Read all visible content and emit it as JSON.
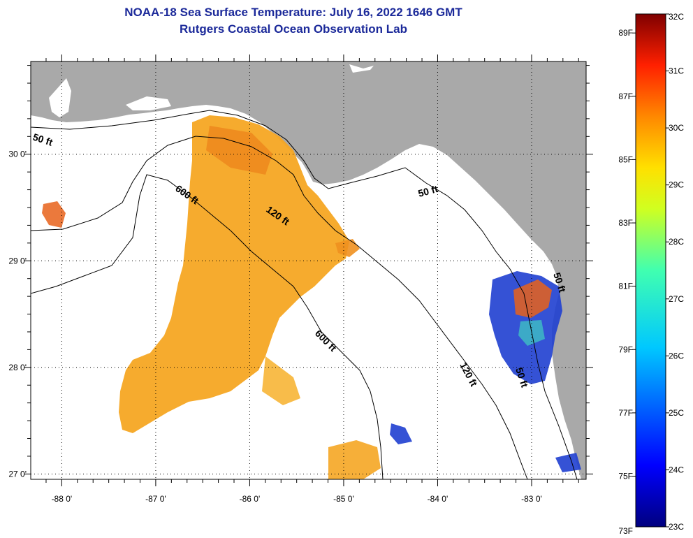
{
  "title_line1": "NOAA-18 Sea Surface Temperature:  July 16, 2022 1646 GMT",
  "title_line2": "Rutgers Coastal Ocean Observation Lab",
  "map": {
    "lon_range": [
      -88.33,
      -82.42
    ],
    "lat_range": [
      26.95,
      30.87
    ],
    "lon_ticks": [
      {
        "value": -88,
        "label": "-88 0'"
      },
      {
        "value": -87,
        "label": "-87 0'"
      },
      {
        "value": -86,
        "label": "-86 0'"
      },
      {
        "value": -85,
        "label": "-85 0'"
      },
      {
        "value": -84,
        "label": "-84 0'"
      },
      {
        "value": -83,
        "label": "-83 0'"
      }
    ],
    "lat_ticks": [
      {
        "value": 30,
        "label": "30 0'"
      },
      {
        "value": 29,
        "label": "29 0'"
      },
      {
        "value": 28,
        "label": "28 0'"
      },
      {
        "value": 27,
        "label": "27 0'"
      }
    ],
    "contour_labels": [
      "50 ft",
      "600 ft",
      "120 ft",
      "50 ft",
      "600 ft",
      "120 ft",
      "50 ft",
      "50 ft"
    ],
    "colors": {
      "land": "#a9a9a9",
      "water": "#ffffff",
      "warm_sst": "#f5a623",
      "hot_sst": "#e8621a",
      "cool_sst": "#1f3fd0"
    }
  },
  "colorbar": {
    "max_c": 32,
    "min_c": 23,
    "f_labels": [
      "89F",
      "87F",
      "85F",
      "83F",
      "81F",
      "79F",
      "77F",
      "75F",
      "73F"
    ],
    "c_labels": [
      "32C",
      "31C",
      "30C",
      "29C",
      "28C",
      "27C",
      "26C",
      "25C",
      "24C",
      "23C"
    ]
  }
}
